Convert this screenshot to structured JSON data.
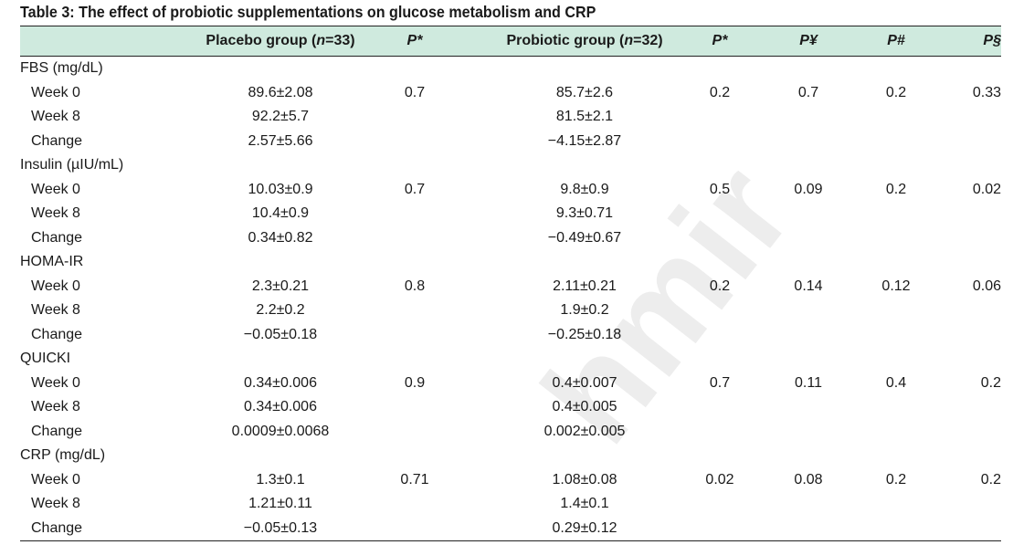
{
  "title": "Table 3: The effect of probiotic supplementations on glucose metabolism and CRP",
  "header": {
    "placebo_pre": "Placebo group (",
    "placebo_n": "n",
    "placebo_post": "=33)",
    "p1": "P*",
    "probiotic_pre": "Probiotic group (",
    "probiotic_n": "n",
    "probiotic_post": "=32)",
    "p2": "P*",
    "p3": "P¥",
    "p4": "P#",
    "p5": "P§"
  },
  "rows": [
    {
      "label": "FBS (mg/dL)"
    },
    {
      "label": "Week 0",
      "placebo": "89.6±2.08",
      "p1": "0.7",
      "probiotic": "85.7±2.6",
      "p2": "0.2",
      "p3": "0.7",
      "p4": "0.2",
      "p5": "0.33"
    },
    {
      "label": "Week 8",
      "placebo": "92.2±5.7",
      "probiotic": "81.5±2.1"
    },
    {
      "label": "Change",
      "placebo": "2.57±5.66",
      "probiotic": "−4.15±2.87"
    },
    {
      "label": "Insulin (µIU/mL)"
    },
    {
      "label": "Week 0",
      "placebo": "10.03±0.9",
      "p1": "0.7",
      "probiotic": "9.8±0.9",
      "p2": "0.5",
      "p3": "0.09",
      "p4": "0.2",
      "p5": "0.02"
    },
    {
      "label": "Week 8",
      "placebo": "10.4±0.9",
      "probiotic": "9.3±0.71"
    },
    {
      "label": "Change",
      "placebo": "0.34±0.82",
      "probiotic": "−0.49±0.67"
    },
    {
      "label": "HOMA-IR"
    },
    {
      "label": "Week 0",
      "placebo": "2.3±0.21",
      "p1": "0.8",
      "probiotic": "2.11±0.21",
      "p2": "0.2",
      "p3": "0.14",
      "p4": "0.12",
      "p5": "0.06"
    },
    {
      "label": "Week 8",
      "placebo": "2.2±0.2",
      "probiotic": "1.9±0.2"
    },
    {
      "label": "Change",
      "placebo": "−0.05±0.18",
      "probiotic": "−0.25±0.18"
    },
    {
      "label": "QUICKI"
    },
    {
      "label": "Week 0",
      "placebo": "0.34±0.006",
      "p1": "0.9",
      "probiotic": "0.4±0.007",
      "p2": "0.7",
      "p3": "0.11",
      "p4": "0.4",
      "p5": "0.2"
    },
    {
      "label": "Week 8",
      "placebo": "0.34±0.006",
      "probiotic": "0.4±0.005"
    },
    {
      "label": "Change",
      "placebo": "0.0009±0.0068",
      "probiotic": "0.002±0.005"
    },
    {
      "label": "CRP (mg/dL)"
    },
    {
      "label": "Week 0",
      "placebo": "1.3±0.1",
      "p1": "0.71",
      "probiotic": "1.08±0.08",
      "p2": "0.02",
      "p3": "0.08",
      "p4": "0.2",
      "p5": "0.2"
    },
    {
      "label": "Week 8",
      "placebo": "1.21±0.11",
      "probiotic": "1.4±0.1"
    },
    {
      "label": "Change",
      "placebo": "−0.05±0.13",
      "probiotic": "0.29±0.12"
    }
  ],
  "watermark": "hmir"
}
